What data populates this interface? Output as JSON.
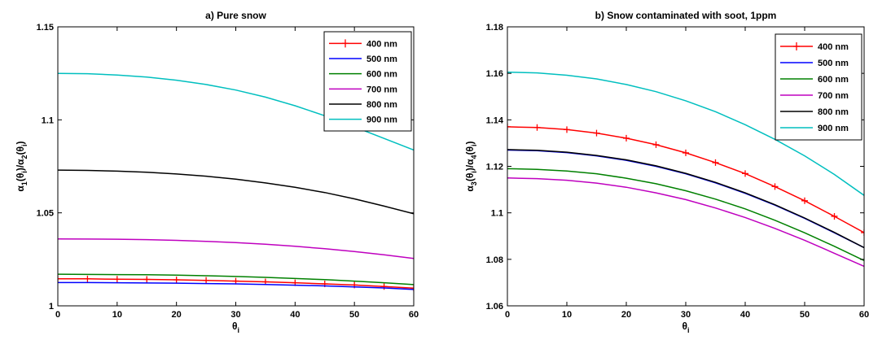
{
  "chart_data": [
    {
      "type": "line",
      "title": "a) Pure snow",
      "xlabel": "θ",
      "xlabel_sub": "i",
      "ylabel_parts": [
        {
          "t": "α",
          "s": ""
        },
        {
          "t": "1",
          "s": "sub"
        },
        {
          "t": "(θ",
          "s": ""
        },
        {
          "t": "i",
          "s": "sub"
        },
        {
          "t": ")/α",
          "s": ""
        },
        {
          "t": "2",
          "s": "sub"
        },
        {
          "t": "(θ",
          "s": ""
        },
        {
          "t": "i",
          "s": "sub"
        },
        {
          "t": ")",
          "s": ""
        }
      ],
      "xlim": [
        0,
        60
      ],
      "ylim": [
        1.0,
        1.15
      ],
      "xticks": [
        0,
        10,
        20,
        30,
        40,
        50,
        60
      ],
      "yticks": [
        1.0,
        1.05,
        1.1,
        1.15
      ],
      "ytick_labels": [
        "1",
        "1.05",
        "1.1",
        "1.15"
      ],
      "grid": false,
      "legend_position": "top-right",
      "x": [
        0,
        5,
        10,
        15,
        20,
        25,
        30,
        35,
        40,
        45,
        50,
        55,
        60
      ],
      "series": [
        {
          "name": "400 nm",
          "color": "#ff0000",
          "marker": "plus",
          "values": [
            1.0145,
            1.0145,
            1.0143,
            1.0142,
            1.014,
            1.0137,
            1.0133,
            1.0129,
            1.0124,
            1.0118,
            1.0112,
            1.0104,
            1.0095
          ]
        },
        {
          "name": "500 nm",
          "color": "#0000ff",
          "marker": "none",
          "values": [
            1.0125,
            1.0125,
            1.0124,
            1.0123,
            1.0122,
            1.012,
            1.0118,
            1.0115,
            1.0111,
            1.0107,
            1.0102,
            1.0096,
            1.0088
          ]
        },
        {
          "name": "600 nm",
          "color": "#008000",
          "marker": "none",
          "values": [
            1.017,
            1.0169,
            1.0168,
            1.0167,
            1.0165,
            1.0162,
            1.0158,
            1.0153,
            1.0147,
            1.0141,
            1.0133,
            1.0124,
            1.0114
          ]
        },
        {
          "name": "700 nm",
          "color": "#bf00bf",
          "marker": "none",
          "values": [
            1.036,
            1.0359,
            1.0358,
            1.0356,
            1.0352,
            1.0347,
            1.034,
            1.0331,
            1.032,
            1.0307,
            1.0292,
            1.0274,
            1.0255
          ]
        },
        {
          "name": "800 nm",
          "color": "#000000",
          "marker": "none",
          "values": [
            1.073,
            1.0728,
            1.0724,
            1.0718,
            1.0709,
            1.0697,
            1.0681,
            1.0661,
            1.0637,
            1.0609,
            1.0575,
            1.0536,
            1.0495
          ]
        },
        {
          "name": "900 nm",
          "color": "#00bfbf",
          "marker": "none",
          "values": [
            1.125,
            1.1248,
            1.1241,
            1.123,
            1.1213,
            1.119,
            1.116,
            1.1122,
            1.1076,
            1.1022,
            1.0962,
            1.09,
            1.0838
          ]
        }
      ]
    },
    {
      "type": "line",
      "title": "b) Snow contaminated with soot, 1ppm",
      "xlabel": "θ",
      "xlabel_sub": "i",
      "ylabel_parts": [
        {
          "t": "α",
          "s": ""
        },
        {
          "t": "3",
          "s": "sub"
        },
        {
          "t": "(θ",
          "s": ""
        },
        {
          "t": "i",
          "s": "sub"
        },
        {
          "t": ")/α",
          "s": ""
        },
        {
          "t": "4",
          "s": "sub"
        },
        {
          "t": "(θ",
          "s": ""
        },
        {
          "t": "i",
          "s": "sub"
        },
        {
          "t": ")",
          "s": ""
        }
      ],
      "xlim": [
        0,
        60
      ],
      "ylim": [
        1.06,
        1.18
      ],
      "xticks": [
        0,
        10,
        20,
        30,
        40,
        50,
        60
      ],
      "yticks": [
        1.06,
        1.08,
        1.1,
        1.12,
        1.14,
        1.16,
        1.18
      ],
      "ytick_labels": [
        "1.06",
        "1.08",
        "1.1",
        "1.12",
        "1.14",
        "1.16",
        "1.18"
      ],
      "grid": false,
      "legend_position": "top-right",
      "x": [
        0,
        5,
        10,
        15,
        20,
        25,
        30,
        35,
        40,
        45,
        50,
        55,
        60
      ],
      "series": [
        {
          "name": "400 nm",
          "color": "#ff0000",
          "marker": "plus",
          "values": [
            1.137,
            1.1367,
            1.1358,
            1.1343,
            1.1321,
            1.1293,
            1.1258,
            1.1216,
            1.1169,
            1.1113,
            1.1052,
            1.0985,
            1.0915
          ]
        },
        {
          "name": "500 nm",
          "color": "#0000ff",
          "marker": "none",
          "values": [
            1.127,
            1.1267,
            1.1259,
            1.1245,
            1.1226,
            1.12,
            1.1168,
            1.1129,
            1.1084,
            1.1033,
            1.0976,
            1.0914,
            1.085
          ]
        },
        {
          "name": "600 nm",
          "color": "#008000",
          "marker": "none",
          "values": [
            1.119,
            1.1187,
            1.118,
            1.1168,
            1.1149,
            1.1125,
            1.1095,
            1.1059,
            1.1017,
            1.0968,
            1.0914,
            1.0856,
            1.0795
          ]
        },
        {
          "name": "700 nm",
          "color": "#bf00bf",
          "marker": "none",
          "values": [
            1.115,
            1.1147,
            1.114,
            1.1128,
            1.111,
            1.1086,
            1.1057,
            1.1021,
            1.098,
            1.0933,
            1.0882,
            1.0826,
            1.077
          ]
        },
        {
          "name": "800 nm",
          "color": "#000000",
          "marker": "none",
          "values": [
            1.1272,
            1.1269,
            1.1261,
            1.1247,
            1.1228,
            1.1202,
            1.117,
            1.1131,
            1.1086,
            1.1035,
            1.0978,
            1.0916,
            1.085
          ]
        },
        {
          "name": "900 nm",
          "color": "#00bfbf",
          "marker": "none",
          "values": [
            1.1605,
            1.1602,
            1.1592,
            1.1576,
            1.1552,
            1.1521,
            1.1482,
            1.1435,
            1.1379,
            1.1316,
            1.1245,
            1.1165,
            1.1075
          ]
        }
      ]
    }
  ]
}
